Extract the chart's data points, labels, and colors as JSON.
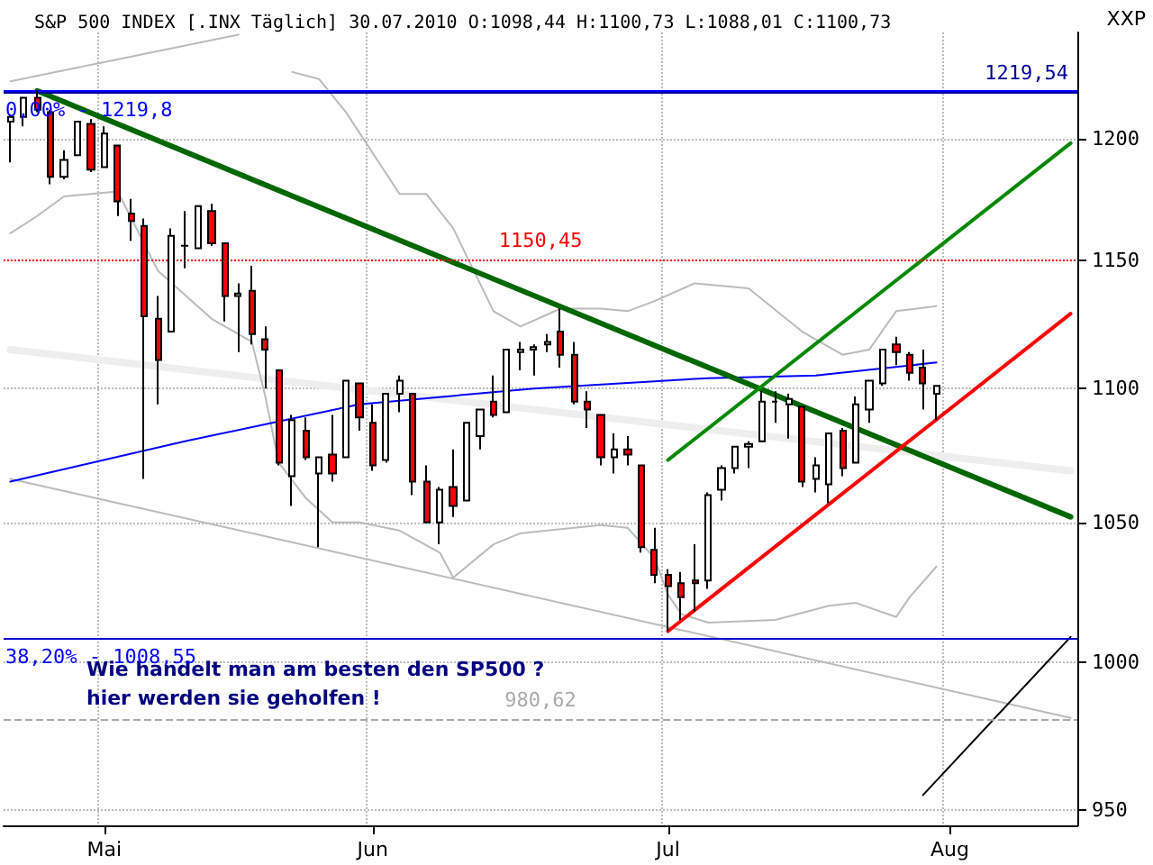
{
  "chart_data": {
    "type": "candlestick",
    "title": "S&P 500 INDEX [.INX Täglich] 30.07.2010 O:1098,44 H:1100,73 L:1088,01 C:1100,73",
    "annotations": [
      "XXP",
      "Wie handelt man am besten den SP500 ?",
      "hier werden sie geholfen !",
      {
        "text": "0,00% - 1219,8",
        "y": 1219.8
      },
      {
        "text": "38,20% - 1008,55",
        "y": 1008.55
      }
    ],
    "categories": [
      null,
      null,
      null,
      null,
      null,
      null,
      null,
      "Mai",
      null,
      null,
      null,
      null,
      null,
      null,
      null,
      null,
      null,
      null,
      null,
      null,
      null,
      null,
      null,
      null,
      null,
      null,
      null,
      "Jun",
      null,
      null,
      null,
      null,
      null,
      null,
      null,
      null,
      null,
      null,
      null,
      null,
      null,
      null,
      null,
      null,
      null,
      null,
      null,
      null,
      null,
      "Jul",
      null,
      null,
      null,
      null,
      null,
      null,
      null,
      null,
      null,
      null,
      null,
      null,
      null,
      null,
      null,
      null,
      null,
      null,
      null,
      null,
      "Aug",
      null,
      null,
      null,
      null,
      null,
      null,
      null,
      null,
      null
    ],
    "ohlc": [
      [
        1207,
        1210,
        1190,
        1209
      ],
      [
        1209,
        1217,
        1205,
        1217
      ],
      [
        1217,
        1220,
        1211,
        1212
      ],
      [
        1211,
        1212,
        1181,
        1184
      ],
      [
        1184,
        1195,
        1183,
        1191
      ],
      [
        1193,
        1207,
        1193,
        1207
      ],
      [
        1206,
        1208,
        1186,
        1187
      ],
      [
        1188,
        1205,
        1188,
        1202
      ],
      [
        1197,
        1197,
        1168,
        1174
      ],
      [
        1169,
        1175,
        1158,
        1166
      ],
      [
        1164,
        1167,
        1066,
        1128
      ],
      [
        1127,
        1136,
        1094,
        1111
      ],
      [
        1122,
        1163,
        1122,
        1160
      ],
      [
        1156,
        1170,
        1147,
        1156
      ],
      [
        1155,
        1172,
        1155,
        1172
      ],
      [
        1170,
        1173,
        1156,
        1157
      ],
      [
        1157,
        1157,
        1126,
        1136
      ],
      [
        1136,
        1141,
        1114,
        1137
      ],
      [
        1138,
        1148,
        1117,
        1121
      ],
      [
        1119,
        1124,
        1100,
        1115
      ],
      [
        1107,
        1107,
        1071,
        1072
      ],
      [
        1067,
        1090,
        1056,
        1088
      ],
      [
        1084,
        1089,
        1073,
        1074
      ],
      [
        1068,
        1074,
        1041,
        1074
      ],
      [
        1075,
        1090,
        1065,
        1068
      ],
      [
        1074,
        1103,
        1074,
        1103
      ],
      [
        1102,
        1102,
        1084,
        1089
      ],
      [
        1087,
        1094,
        1069,
        1071
      ],
      [
        1073,
        1098,
        1072,
        1098
      ],
      [
        1098,
        1105,
        1091,
        1103
      ],
      [
        1098,
        1098,
        1060,
        1065
      ],
      [
        1065,
        1071,
        1050,
        1050
      ],
      [
        1050,
        1063,
        1042,
        1062
      ],
      [
        1063,
        1077,
        1052,
        1056
      ],
      [
        1058,
        1087,
        1058,
        1087
      ],
      [
        1082,
        1092,
        1077,
        1092
      ],
      [
        1095,
        1105,
        1089,
        1090
      ],
      [
        1091,
        1115,
        1091,
        1115
      ],
      [
        1114,
        1118,
        1107,
        1115
      ],
      [
        1115,
        1117,
        1105,
        1116
      ],
      [
        1117,
        1121,
        1114,
        1118
      ],
      [
        1122,
        1131,
        1108,
        1113
      ],
      [
        1113,
        1118,
        1094,
        1095
      ],
      [
        1095,
        1099,
        1085,
        1092
      ],
      [
        1090,
        1090,
        1071,
        1074
      ],
      [
        1074,
        1083,
        1068,
        1077
      ],
      [
        1077,
        1082,
        1071,
        1075
      ],
      [
        1071,
        1071,
        1039,
        1041
      ],
      [
        1040,
        1048,
        1028,
        1031
      ],
      [
        1031,
        1033,
        1011,
        1027
      ],
      [
        1028,
        1032,
        1015,
        1023
      ],
      [
        1029,
        1042,
        1018,
        1028
      ],
      [
        1029,
        1061,
        1026,
        1060
      ],
      [
        1062,
        1071,
        1058,
        1070
      ],
      [
        1070,
        1078,
        1068,
        1078
      ],
      [
        1078,
        1080,
        1070,
        1079
      ],
      [
        1080,
        1099,
        1080,
        1095
      ],
      [
        1095,
        1099,
        1087,
        1095
      ],
      [
        1094,
        1098,
        1081,
        1096
      ],
      [
        1093,
        1093,
        1063,
        1065
      ],
      [
        1066,
        1074,
        1061,
        1071
      ],
      [
        1064,
        1083,
        1057,
        1083
      ],
      [
        1084,
        1085,
        1067,
        1070
      ],
      [
        1072,
        1097,
        1072,
        1094
      ],
      [
        1092,
        1103,
        1087,
        1103
      ],
      [
        1102,
        1115,
        1101,
        1115
      ],
      [
        1117,
        1120,
        1109,
        1114
      ],
      [
        1113,
        1114,
        1103,
        1106
      ],
      [
        1108,
        1115,
        1092,
        1102
      ],
      [
        1098,
        1101,
        1088,
        1101
      ],
      null,
      null,
      null,
      null,
      null,
      null,
      null,
      null,
      null,
      null
    ],
    "series": [
      {
        "type": "line",
        "color": "#bbbbbb",
        "line_style": "solid",
        "values": [
          1224,
          null,
          null,
          null,
          null,
          null,
          null,
          null,
          null,
          null,
          null,
          null,
          null,
          null,
          null,
          null,
          null,
          1244,
          null,
          null,
          null,
          null,
          null,
          null,
          null,
          null,
          null,
          null,
          null,
          null,
          null,
          null,
          null,
          null,
          null,
          null,
          null,
          null,
          null,
          null,
          null,
          null,
          null,
          null,
          null,
          null,
          null,
          null,
          null,
          null,
          null,
          null,
          null,
          null,
          null,
          null,
          null,
          null,
          null,
          null,
          null,
          null,
          null,
          null,
          null,
          null,
          null,
          null,
          null,
          null,
          null,
          null,
          null,
          null,
          null,
          null,
          null,
          null,
          null,
          null
        ]
      },
      {
        "type": "line",
        "color": "#bbbbbb",
        "line_style": "solid",
        "values": [
          null,
          null,
          null,
          null,
          null,
          null,
          null,
          null,
          null,
          null,
          null,
          null,
          null,
          null,
          null,
          null,
          null,
          null,
          null,
          null,
          null,
          1228,
          null,
          1225,
          null,
          1211,
          null,
          null,
          null,
          1177,
          null,
          1177,
          null,
          1163,
          null,
          null,
          1130,
          null,
          1124,
          null,
          null,
          1131,
          null,
          null,
          1131,
          null,
          1130,
          null,
          1134,
          null,
          null,
          1141,
          null,
          null,
          null,
          1139,
          null,
          null,
          null,
          1122,
          null,
          null,
          1113,
          null,
          1115,
          null,
          1130,
          null,
          null,
          1132,
          null,
          null,
          null,
          null,
          null,
          null,
          null,
          null,
          null,
          null
        ]
      },
      {
        "type": "line",
        "color": "#bbbbbb",
        "line_style": "solid",
        "values": [
          1161,
          null,
          1168,
          null,
          1176,
          null,
          null,
          null,
          1178,
          null,
          null,
          1146,
          null,
          null,
          null,
          1127,
          null,
          null,
          1118,
          1097,
          1072,
          null,
          1059,
          null,
          1050,
          null,
          1050,
          null,
          null,
          1047,
          null,
          null,
          1039,
          1030,
          1034,
          null,
          1042,
          null,
          1046,
          null,
          1047,
          null,
          null,
          null,
          1049,
          null,
          1048,
          null,
          1037,
          1024,
          1017,
          null,
          1014,
          null,
          null,
          null,
          null,
          1015,
          null,
          null,
          null,
          1020,
          null,
          1021,
          null,
          null,
          1016,
          1023,
          null,
          1034,
          null,
          null,
          null,
          null,
          null,
          null,
          null,
          null,
          null,
          null
        ]
      },
      {
        "type": "line",
        "color": "#eeeeee",
        "line_style": "solid",
        "values": [
          1115,
          null,
          null,
          null,
          null,
          null,
          null,
          null,
          null,
          null,
          null,
          null,
          null,
          null,
          null,
          null,
          null,
          null,
          null,
          null,
          null,
          null,
          null,
          null,
          null,
          null,
          null,
          null,
          null,
          null,
          null,
          null,
          null,
          null,
          null,
          null,
          null,
          null,
          null,
          null,
          null,
          null,
          null,
          null,
          null,
          null,
          null,
          null,
          null,
          null,
          null,
          null,
          null,
          null,
          null,
          null,
          null,
          null,
          null,
          null,
          null,
          null,
          null,
          null,
          null,
          null,
          null,
          null,
          null,
          null,
          null,
          null,
          null,
          null,
          null,
          null,
          null,
          null,
          null,
          1069
        ]
      },
      {
        "type": "line",
        "color": "#bbbbbb",
        "line_style": "solid",
        "values": [
          1066,
          null,
          null,
          null,
          null,
          null,
          null,
          null,
          null,
          null,
          null,
          null,
          null,
          null,
          null,
          null,
          null,
          null,
          null,
          null,
          null,
          null,
          null,
          null,
          null,
          null,
          null,
          null,
          null,
          null,
          null,
          null,
          null,
          null,
          null,
          null,
          null,
          null,
          null,
          null,
          null,
          null,
          null,
          null,
          null,
          null,
          null,
          null,
          null,
          null,
          null,
          null,
          null,
          null,
          null,
          null,
          null,
          null,
          null,
          null,
          null,
          null,
          null,
          null,
          null,
          null,
          null,
          null,
          null,
          null,
          null,
          null,
          null,
          null,
          null,
          null,
          null,
          null,
          null,
          981
        ]
      },
      {
        "type": "line",
        "color": "#0000ff",
        "line_style": "solid",
        "values": [
          1065,
          null,
          null,
          null,
          null,
          null,
          null,
          null,
          null,
          null,
          null,
          null,
          null,
          1080,
          null,
          null,
          null,
          null,
          null,
          null,
          null,
          null,
          null,
          null,
          null,
          null,
          1094,
          null,
          null,
          null,
          null,
          null,
          null,
          null,
          null,
          null,
          null,
          null,
          null,
          1100,
          null,
          null,
          null,
          null,
          null,
          null,
          null,
          null,
          null,
          null,
          null,
          null,
          1104,
          null,
          null,
          null,
          null,
          null,
          null,
          null,
          1105,
          null,
          null,
          null,
          null,
          null,
          null,
          null,
          null,
          1110,
          null,
          null,
          null,
          null,
          null,
          null,
          null,
          null,
          null,
          null
        ]
      },
      {
        "type": "line",
        "color": "#006600",
        "line_style": "solid",
        "values": [
          null,
          null,
          1220,
          null,
          null,
          null,
          null,
          null,
          null,
          null,
          null,
          null,
          null,
          null,
          null,
          null,
          null,
          null,
          null,
          null,
          null,
          null,
          null,
          null,
          null,
          null,
          null,
          null,
          null,
          null,
          null,
          null,
          null,
          null,
          null,
          null,
          null,
          null,
          null,
          null,
          null,
          null,
          null,
          null,
          null,
          null,
          null,
          null,
          null,
          null,
          null,
          null,
          null,
          null,
          null,
          null,
          null,
          null,
          null,
          null,
          null,
          null,
          null,
          null,
          null,
          null,
          null,
          null,
          null,
          null,
          null,
          null,
          null,
          null,
          null,
          null,
          null,
          null,
          null,
          1052
        ]
      },
      {
        "type": "line",
        "color": "#008800",
        "line_style": "solid",
        "values": [
          null,
          null,
          null,
          null,
          null,
          null,
          null,
          null,
          null,
          null,
          null,
          null,
          null,
          null,
          null,
          null,
          null,
          null,
          null,
          null,
          null,
          null,
          null,
          null,
          null,
          null,
          null,
          null,
          null,
          null,
          null,
          null,
          null,
          null,
          null,
          null,
          null,
          null,
          null,
          null,
          null,
          null,
          null,
          null,
          null,
          null,
          null,
          null,
          null,
          1073,
          null,
          null,
          null,
          null,
          null,
          null,
          null,
          null,
          null,
          null,
          null,
          null,
          null,
          null,
          null,
          null,
          null,
          null,
          null,
          null,
          null,
          null,
          null,
          null,
          null,
          null,
          null,
          null,
          null,
          1198
        ]
      },
      {
        "type": "line",
        "color": "#ff0000",
        "line_style": "solid",
        "values": [
          null,
          null,
          null,
          null,
          null,
          null,
          null,
          null,
          null,
          null,
          null,
          null,
          null,
          null,
          null,
          null,
          null,
          null,
          null,
          null,
          null,
          null,
          null,
          null,
          null,
          null,
          null,
          null,
          null,
          null,
          null,
          null,
          null,
          null,
          null,
          null,
          null,
          null,
          null,
          null,
          null,
          null,
          null,
          null,
          null,
          null,
          null,
          null,
          null,
          1011,
          null,
          null,
          null,
          null,
          null,
          null,
          null,
          null,
          null,
          null,
          null,
          null,
          null,
          null,
          null,
          null,
          null,
          null,
          null,
          null,
          null,
          null,
          null,
          null,
          null,
          null,
          null,
          null,
          null,
          1129
        ]
      },
      {
        "type": "line",
        "color": "#000000",
        "line_style": "solid",
        "values": [
          null,
          null,
          null,
          null,
          null,
          null,
          null,
          null,
          null,
          null,
          null,
          null,
          null,
          null,
          null,
          null,
          null,
          null,
          null,
          null,
          null,
          null,
          null,
          null,
          null,
          null,
          null,
          null,
          null,
          null,
          null,
          null,
          null,
          null,
          null,
          null,
          null,
          null,
          null,
          null,
          null,
          null,
          null,
          null,
          null,
          null,
          null,
          null,
          null,
          null,
          null,
          null,
          null,
          null,
          null,
          null,
          null,
          null,
          null,
          null,
          null,
          null,
          null,
          null,
          null,
          null,
          null,
          null,
          955,
          null,
          null,
          null,
          null,
          null,
          null,
          null,
          null,
          null,
          null,
          1009
        ]
      }
    ],
    "ref_lines": [
      {
        "axis": "y",
        "value": 1219.54,
        "label": "1219,54",
        "color": "#000099",
        "line_style": "solid"
      },
      {
        "axis": "y",
        "value": 1219.8,
        "color": "#0000ff",
        "line_style": "solid"
      },
      {
        "axis": "y",
        "value": 1150.45,
        "label": "1150,45",
        "color": "#ff0000",
        "line_style": "dotted"
      },
      {
        "axis": "y",
        "value": 1008.55,
        "color": "#0000cc",
        "line_style": "solid"
      },
      {
        "axis": "y",
        "value": 980.62,
        "label": "980,62",
        "color": "#aaaaaa",
        "line_style": "dashed"
      }
    ],
    "ylim": [
      945,
      1245
    ],
    "yticks": [
      950,
      1000,
      1050,
      1100,
      1150,
      1200
    ],
    "log": true,
    "grid": true,
    "marker": "none"
  }
}
